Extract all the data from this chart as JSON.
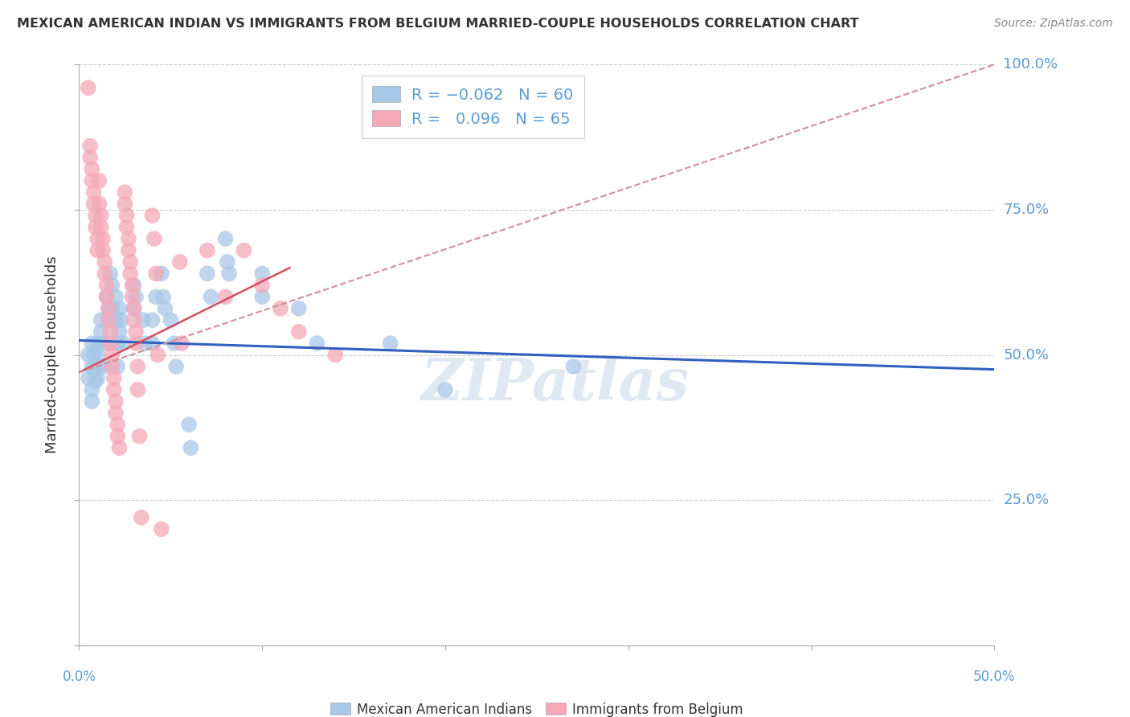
{
  "title": "MEXICAN AMERICAN INDIAN VS IMMIGRANTS FROM BELGIUM MARRIED-COUPLE HOUSEHOLDS CORRELATION CHART",
  "source": "Source: ZipAtlas.com",
  "ylabel": "Married-couple Households",
  "xlim": [
    0.0,
    0.5
  ],
  "ylim": [
    0.0,
    1.0
  ],
  "x_ticks": [
    0.0,
    0.1,
    0.2,
    0.3,
    0.4,
    0.5
  ],
  "y_ticks": [
    0.0,
    0.25,
    0.5,
    0.75,
    1.0
  ],
  "y_tick_labels": [
    "",
    "25.0%",
    "50.0%",
    "75.0%",
    "100.0%"
  ],
  "legend_label1": "Mexican American Indians",
  "legend_label2": "Immigrants from Belgium",
  "blue_scatter": [
    [
      0.005,
      0.5
    ],
    [
      0.005,
      0.46
    ],
    [
      0.007,
      0.48
    ],
    [
      0.007,
      0.52
    ],
    [
      0.007,
      0.44
    ],
    [
      0.007,
      0.42
    ],
    [
      0.008,
      0.5
    ],
    [
      0.008,
      0.475
    ],
    [
      0.009,
      0.455
    ],
    [
      0.01,
      0.52
    ],
    [
      0.01,
      0.5
    ],
    [
      0.01,
      0.48
    ],
    [
      0.01,
      0.46
    ],
    [
      0.012,
      0.56
    ],
    [
      0.012,
      0.54
    ],
    [
      0.013,
      0.52
    ],
    [
      0.013,
      0.48
    ],
    [
      0.015,
      0.6
    ],
    [
      0.016,
      0.58
    ],
    [
      0.016,
      0.56
    ],
    [
      0.017,
      0.64
    ],
    [
      0.018,
      0.62
    ],
    [
      0.018,
      0.58
    ],
    [
      0.019,
      0.56
    ],
    [
      0.02,
      0.6
    ],
    [
      0.02,
      0.56
    ],
    [
      0.021,
      0.52
    ],
    [
      0.021,
      0.48
    ],
    [
      0.022,
      0.58
    ],
    [
      0.022,
      0.54
    ],
    [
      0.023,
      0.56
    ],
    [
      0.024,
      0.52
    ],
    [
      0.03,
      0.62
    ],
    [
      0.03,
      0.58
    ],
    [
      0.031,
      0.6
    ],
    [
      0.035,
      0.56
    ],
    [
      0.036,
      0.52
    ],
    [
      0.04,
      0.56
    ],
    [
      0.04,
      0.52
    ],
    [
      0.042,
      0.6
    ],
    [
      0.045,
      0.64
    ],
    [
      0.046,
      0.6
    ],
    [
      0.047,
      0.58
    ],
    [
      0.05,
      0.56
    ],
    [
      0.052,
      0.52
    ],
    [
      0.053,
      0.48
    ],
    [
      0.06,
      0.38
    ],
    [
      0.061,
      0.34
    ],
    [
      0.07,
      0.64
    ],
    [
      0.072,
      0.6
    ],
    [
      0.08,
      0.7
    ],
    [
      0.081,
      0.66
    ],
    [
      0.082,
      0.64
    ],
    [
      0.1,
      0.64
    ],
    [
      0.1,
      0.6
    ],
    [
      0.12,
      0.58
    ],
    [
      0.13,
      0.52
    ],
    [
      0.17,
      0.52
    ],
    [
      0.2,
      0.44
    ],
    [
      0.27,
      0.48
    ]
  ],
  "pink_scatter": [
    [
      0.005,
      0.96
    ],
    [
      0.006,
      0.86
    ],
    [
      0.006,
      0.84
    ],
    [
      0.007,
      0.82
    ],
    [
      0.007,
      0.8
    ],
    [
      0.008,
      0.78
    ],
    [
      0.008,
      0.76
    ],
    [
      0.009,
      0.74
    ],
    [
      0.009,
      0.72
    ],
    [
      0.01,
      0.7
    ],
    [
      0.01,
      0.68
    ],
    [
      0.011,
      0.8
    ],
    [
      0.011,
      0.76
    ],
    [
      0.012,
      0.74
    ],
    [
      0.012,
      0.72
    ],
    [
      0.013,
      0.7
    ],
    [
      0.013,
      0.68
    ],
    [
      0.014,
      0.66
    ],
    [
      0.014,
      0.64
    ],
    [
      0.015,
      0.62
    ],
    [
      0.015,
      0.6
    ],
    [
      0.016,
      0.58
    ],
    [
      0.016,
      0.56
    ],
    [
      0.017,
      0.54
    ],
    [
      0.017,
      0.52
    ],
    [
      0.018,
      0.5
    ],
    [
      0.018,
      0.48
    ],
    [
      0.019,
      0.46
    ],
    [
      0.019,
      0.44
    ],
    [
      0.02,
      0.42
    ],
    [
      0.02,
      0.4
    ],
    [
      0.021,
      0.38
    ],
    [
      0.021,
      0.36
    ],
    [
      0.022,
      0.34
    ],
    [
      0.025,
      0.78
    ],
    [
      0.025,
      0.76
    ],
    [
      0.026,
      0.74
    ],
    [
      0.026,
      0.72
    ],
    [
      0.027,
      0.7
    ],
    [
      0.027,
      0.68
    ],
    [
      0.028,
      0.66
    ],
    [
      0.028,
      0.64
    ],
    [
      0.029,
      0.62
    ],
    [
      0.029,
      0.6
    ],
    [
      0.03,
      0.58
    ],
    [
      0.03,
      0.56
    ],
    [
      0.031,
      0.54
    ],
    [
      0.031,
      0.52
    ],
    [
      0.032,
      0.48
    ],
    [
      0.032,
      0.44
    ],
    [
      0.033,
      0.36
    ],
    [
      0.034,
      0.22
    ],
    [
      0.04,
      0.74
    ],
    [
      0.041,
      0.7
    ],
    [
      0.042,
      0.64
    ],
    [
      0.043,
      0.5
    ],
    [
      0.045,
      0.2
    ],
    [
      0.055,
      0.66
    ],
    [
      0.056,
      0.52
    ],
    [
      0.07,
      0.68
    ],
    [
      0.08,
      0.6
    ],
    [
      0.09,
      0.68
    ],
    [
      0.1,
      0.62
    ],
    [
      0.11,
      0.58
    ],
    [
      0.12,
      0.54
    ],
    [
      0.14,
      0.5
    ]
  ],
  "blue_line_x": [
    0.0,
    0.5
  ],
  "blue_line_y": [
    0.525,
    0.475
  ],
  "pink_line_x": [
    0.0,
    0.115
  ],
  "pink_line_y": [
    0.47,
    0.65
  ],
  "pink_dash_line_x": [
    0.0,
    0.5
  ],
  "pink_dash_line_y": [
    0.47,
    1.0
  ],
  "blue_color": "#a8c8e8",
  "pink_color": "#f4a8b8",
  "blue_line_color": "#3060c0",
  "pink_line_color": "#d05060",
  "pink_dash_color": "#d09098",
  "watermark": "ZIPatlas",
  "background_color": "#ffffff",
  "grid_color": "#cccccc",
  "tick_color": "#5b9bd5",
  "title_color": "#333333",
  "source_color": "#888888",
  "ylabel_color": "#333333"
}
